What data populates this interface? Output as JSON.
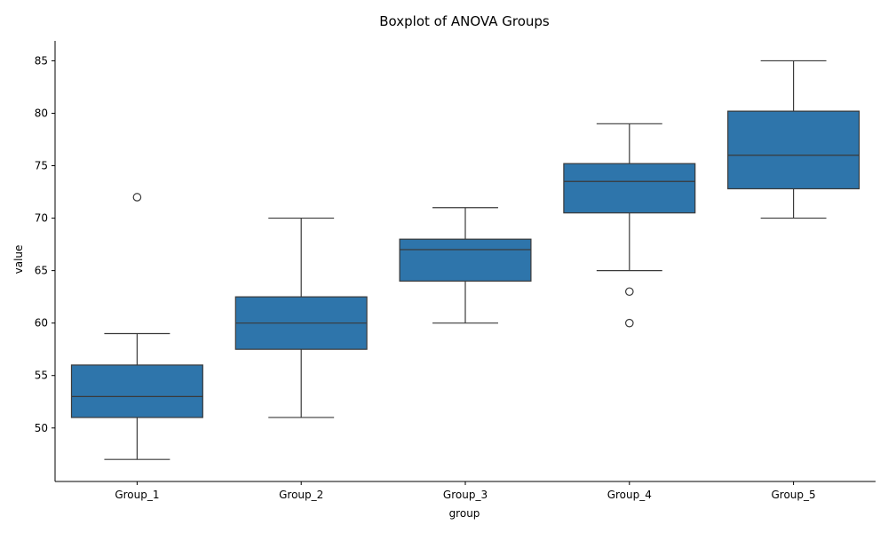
{
  "chart_data": {
    "type": "boxplot",
    "title": "Boxplot of ANOVA Groups",
    "xlabel": "group",
    "ylabel": "value",
    "ylim": [
      44.9,
      86.9
    ],
    "yticks": [
      50,
      55,
      60,
      65,
      70,
      75,
      80,
      85
    ],
    "box_color": "#2e75ab",
    "line_color": "#3a3a3a",
    "grid": false,
    "categories": [
      "Group_1",
      "Group_2",
      "Group_3",
      "Group_4",
      "Group_5"
    ],
    "boxes": [
      {
        "name": "Group_1",
        "whisker_low": 47,
        "q1": 51,
        "median": 53,
        "q3": 56,
        "whisker_high": 59,
        "outliers": [
          72
        ]
      },
      {
        "name": "Group_2",
        "whisker_low": 51,
        "q1": 57.5,
        "median": 60,
        "q3": 62.5,
        "whisker_high": 70,
        "outliers": []
      },
      {
        "name": "Group_3",
        "whisker_low": 60,
        "q1": 64,
        "median": 67,
        "q3": 68,
        "whisker_high": 71,
        "outliers": []
      },
      {
        "name": "Group_4",
        "whisker_low": 65,
        "q1": 70.5,
        "median": 73.5,
        "q3": 75.2,
        "whisker_high": 79,
        "outliers": [
          63,
          60
        ]
      },
      {
        "name": "Group_5",
        "whisker_low": 70,
        "q1": 72.8,
        "median": 76,
        "q3": 80.2,
        "whisker_high": 85,
        "outliers": []
      }
    ]
  }
}
